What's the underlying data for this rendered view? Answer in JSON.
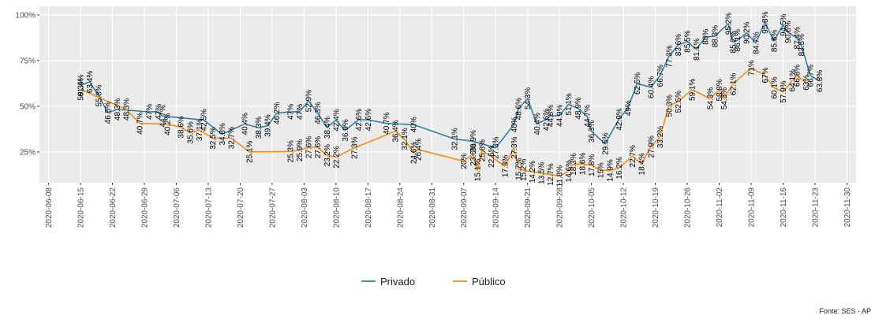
{
  "chart_data": {
    "type": "line",
    "caption": "Fonte: SES - AP",
    "legend": "bottom",
    "grid": true,
    "xlim": [
      "2020-06-06",
      "2020-12-02"
    ],
    "xticks": [
      "2020-06-08",
      "2020-06-15",
      "2020-06-22",
      "2020-06-29",
      "2020-07-06",
      "2020-07-13",
      "2020-07-20",
      "2020-07-27",
      "2020-08-03",
      "2020-08-10",
      "2020-08-17",
      "2020-08-24",
      "2020-08-31",
      "2020-09-07",
      "2020-09-14",
      "2020-09-21",
      "2020-09-28",
      "2020-10-05",
      "2020-10-12",
      "2020-10-19",
      "2020-10-26",
      "2020-11-02",
      "2020-11-09",
      "2020-11-16",
      "2020-11-23",
      "2020-11-30"
    ],
    "ylim": [
      8.2,
      104.7
    ],
    "yticks": [
      {
        "value": 25,
        "label": "25%"
      },
      {
        "value": 50,
        "label": "50%"
      },
      {
        "value": 75,
        "label": "75%"
      },
      {
        "value": 100,
        "label": "100%"
      }
    ],
    "series": [
      {
        "name": "Privado",
        "color": "#3282a8",
        "x": [
          "2020-06-15",
          "2020-06-17",
          "2020-06-19",
          "2020-06-21",
          "2020-06-23",
          "2020-06-30",
          "2020-07-02",
          "2020-07-03",
          "2020-07-12",
          "2020-07-16",
          "2020-07-21",
          "2020-07-24",
          "2020-07-26",
          "2020-07-28",
          "2020-07-31",
          "2020-08-02",
          "2020-08-04",
          "2020-08-06",
          "2020-08-08",
          "2020-08-10",
          "2020-08-12",
          "2020-08-15",
          "2020-08-17",
          "2020-08-21",
          "2020-08-27",
          "2020-09-05",
          "2020-09-09",
          "2020-09-14",
          "2020-09-18",
          "2020-09-19",
          "2020-09-21",
          "2020-09-23",
          "2020-09-25",
          "2020-09-26",
          "2020-09-28",
          "2020-09-30",
          "2020-10-02",
          "2020-10-04",
          "2020-10-05",
          "2020-10-08",
          "2020-10-11",
          "2020-10-13",
          "2020-10-15",
          "2020-10-18",
          "2020-10-20",
          "2020-10-22",
          "2020-10-24",
          "2020-10-26",
          "2020-10-28",
          "2020-10-30",
          "2020-11-01",
          "2020-11-04",
          "2020-11-05",
          "2020-11-06",
          "2020-11-08",
          "2020-11-10",
          "2020-11-12",
          "2020-11-14",
          "2020-11-16",
          "2020-11-17",
          "2020-11-19",
          "2020-11-20",
          "2020-11-22",
          "2020-11-24"
        ],
        "values": [
          61.4,
          63.4,
          55.8,
          46.5,
          48.3,
          47,
          47,
          44.7,
          42.5,
          34.8,
          40.4,
          38.3,
          39.4,
          46.2,
          47,
          47,
          52.9,
          46.3,
          38.4,
          42.4,
          36.9,
          42.6,
          42.6,
          40.7,
          40,
          32.1,
          30.9,
          27.3,
          40,
          48.6,
          54.3,
          40.4,
          42.6,
          44.8,
          44.9,
          51.1,
          48.9,
          44.7,
          36.3,
          29.5,
          42.9,
          49,
          62.5,
          60.4,
          66.7,
          77.3,
          83.6,
          85.5,
          81.1,
          88,
          88.3,
          95.2,
          85.2,
          86.1,
          90.2,
          84.7,
          95.8,
          85.8,
          94.5,
          90.6,
          87.4,
          83.5,
          66.7,
          63.8
        ],
        "value_labels": [
          "61.4%",
          "63.4%",
          "55.8%",
          "46.5%",
          "48.3%",
          "47%",
          "47%",
          "44.7%",
          "42.5%",
          "34.8%",
          "40.4%",
          "38.3%",
          "39.4%",
          "46.2%",
          "47%",
          "47%",
          "52.9%",
          "46.3%",
          "38.4%",
          "42.4%",
          "36.9%",
          "42.6%",
          "42.6%",
          "40.7%",
          "40%",
          "32.1%",
          "30.9%",
          "27.3%",
          "40%",
          "48.6%",
          "54.3%",
          "40.4%",
          "42.6%",
          "44.8%",
          "44.9%",
          "51.1%",
          "48.9%",
          "44.7%",
          "36.3%",
          "29.5%",
          "42.9%",
          "49%",
          "62.5%",
          "60.4%",
          "66.7%",
          "77.3%",
          "83.6%",
          "85.5%",
          "81.1%",
          "88%",
          "88.3%",
          "95.2%",
          "85.2%",
          "86.1%",
          "90.2%",
          "84.7%",
          "95.8%",
          "85.8%",
          "94.5%",
          "90.6%",
          "87.4%",
          "83.5%",
          "66.7%",
          "63.8%"
        ]
      },
      {
        "name": "Público",
        "color": "#f28e1c",
        "x": [
          "2020-06-15",
          "2020-06-25",
          "2020-06-28",
          "2020-07-04",
          "2020-07-07",
          "2020-07-09",
          "2020-07-11",
          "2020-07-14",
          "2020-07-18",
          "2020-07-22",
          "2020-07-31",
          "2020-08-02",
          "2020-08-04",
          "2020-08-06",
          "2020-08-08",
          "2020-08-10",
          "2020-08-14",
          "2020-08-23",
          "2020-08-25",
          "2020-08-27",
          "2020-08-28",
          "2020-09-07",
          "2020-09-09",
          "2020-09-10",
          "2020-09-11",
          "2020-09-13",
          "2020-09-16",
          "2020-09-18",
          "2020-09-19",
          "2020-09-20",
          "2020-09-22",
          "2020-09-24",
          "2020-09-26",
          "2020-09-28",
          "2020-09-30",
          "2020-10-01",
          "2020-10-03",
          "2020-10-05",
          "2020-10-07",
          "2020-10-09",
          "2020-10-11",
          "2020-10-14",
          "2020-10-16",
          "2020-10-18",
          "2020-10-20",
          "2020-10-22",
          "2020-10-24",
          "2020-10-27",
          "2020-10-31",
          "2020-11-02",
          "2020-11-03",
          "2020-11-05",
          "2020-11-09",
          "2020-11-12",
          "2020-11-14",
          "2020-11-16",
          "2020-11-18",
          "2020-11-19",
          "2020-11-21"
        ],
        "values": [
          59.3,
          48.3,
          40.7,
          40.2,
          38.6,
          35.6,
          37.1,
          32.5,
          32.7,
          25.1,
          25.3,
          25.9,
          27.6,
          27.6,
          23.2,
          22.2,
          27.3,
          36.4,
          32.1,
          24.6,
          26.4,
          20,
          23.6,
          15.1,
          25.8,
          22.6,
          17.3,
          27.3,
          15.7,
          15.2,
          14.2,
          13.5,
          12.7,
          11.8,
          14.6,
          18.3,
          18.6,
          17.8,
          15,
          14.9,
          16.2,
          22.7,
          18.4,
          27.9,
          33.2,
          50.3,
          52.5,
          59.1,
          54.3,
          58.8,
          54.3,
          62.1,
          71,
          67,
          60.1,
          57.9,
          64.1,
          66.8,
          63
        ],
        "value_labels": [
          "59.3%",
          "48.3%",
          "40.7%",
          "40.2%",
          "38.6%",
          "35.6%",
          "37.1%",
          "32.5%",
          "32.7%",
          "25.1%",
          "25.3%",
          "25.9%",
          "27.6%",
          "27.6%",
          "23.2%",
          "22.2%",
          "27.3%",
          "36.4%",
          "32.1%",
          "24.6%",
          "26.4%",
          "20%",
          "23.6%",
          "15.1%",
          "25.8%",
          "22.6%",
          "17.3%",
          "27.3%",
          "15.7%",
          "15.2%",
          "14.2%",
          "13.5%",
          "12.7%",
          "11.8%",
          "14.6%",
          "18.3%",
          "18.6%",
          "17.8%",
          "15%",
          "14.9%",
          "16.2%",
          "22.7%",
          "18.4%",
          "27.9%",
          "33.2%",
          "50.3%",
          "52.5%",
          "59.1%",
          "54.3%",
          "58.8%",
          "54.3%",
          "62.1%",
          "71%",
          "67%",
          "60.1%",
          "57.9%",
          "64.1%",
          "66.8%",
          "63%"
        ]
      }
    ]
  }
}
